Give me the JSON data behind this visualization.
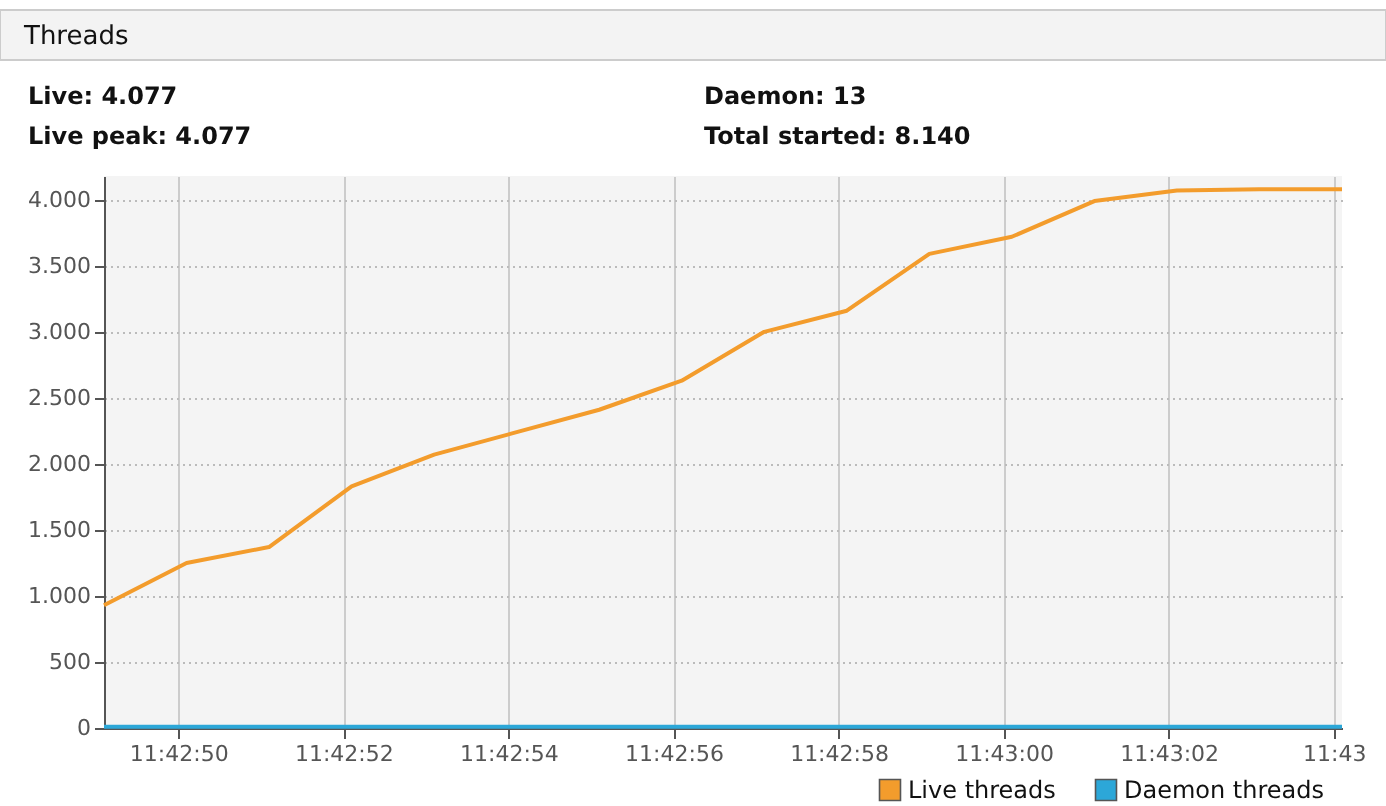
{
  "chart_data": {
    "type": "line",
    "title": "Threads",
    "annotations": [
      "Live: 4.077",
      "Live peak: 4.077",
      "Daemon: 13",
      "Total started: 8.140"
    ],
    "x": [
      11.7136389,
      11.7139167,
      11.7141944,
      11.7144722,
      11.71475,
      11.7150278,
      11.7153056,
      11.7155833,
      11.7158611,
      11.7161389,
      11.7164167,
      11.7166944,
      11.7169722,
      11.71725,
      11.7175278,
      11.7178056
    ],
    "series": [
      {
        "name": "Live threads",
        "color": "#f39c2c",
        "values": [
          930,
          1250,
          1370,
          1830,
          2070,
          2240,
          2410,
          2630,
          3000,
          3160,
          3590,
          3720,
          3990,
          4070,
          4080,
          4080
        ]
      },
      {
        "name": "Daemon threads",
        "color": "#2ca7d8",
        "values": [
          10,
          10,
          10,
          10,
          10,
          10,
          10,
          10,
          10,
          10,
          10,
          10,
          10,
          10,
          10,
          10
        ]
      }
    ],
    "xlim": [
      11.7136389,
      11.7178056
    ],
    "xticks": [
      {
        "value": 11.7138889,
        "label": "11:42:50"
      },
      {
        "value": 11.7144444,
        "label": "11:42:52"
      },
      {
        "value": 11.715,
        "label": "11:42:54"
      },
      {
        "value": 11.7155556,
        "label": "11:42:56"
      },
      {
        "value": 11.7161111,
        "label": "11:42:58"
      },
      {
        "value": 11.7166667,
        "label": "11:43:00"
      },
      {
        "value": 11.7172222,
        "label": "11:43:02"
      },
      {
        "value": 11.7177778,
        "label": "11:43"
      }
    ],
    "ylim": [
      0,
      4180
    ],
    "yticks": [
      0,
      500,
      {
        "value": 1000,
        "label": "1.000"
      },
      {
        "value": 1500,
        "label": "1.500"
      },
      {
        "value": 2000,
        "label": "2.000"
      },
      {
        "value": 2500,
        "label": "2.500"
      },
      {
        "value": 3000,
        "label": "3.000"
      },
      {
        "value": 3500,
        "label": "3.500"
      },
      {
        "value": 4000,
        "label": "4.000"
      }
    ],
    "grid": true,
    "legend": "bottom right",
    "marker": "none",
    "line_style": "solid"
  }
}
